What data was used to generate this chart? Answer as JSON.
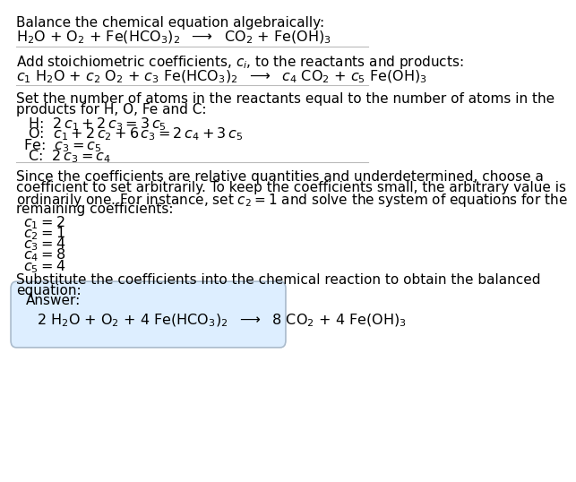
{
  "title_line": "Balance the chemical equation algebraically:",
  "reaction_line": "H$_2$O + O$_2$ + Fe(HCO$_3$)$_2$  $\\longrightarrow$  CO$_2$ + Fe(OH)$_3$",
  "add_coeff_text": "Add stoichiometric coefficients, $c_i$, to the reactants and products:",
  "coeff_reaction": "$c_1$ H$_2$O + $c_2$ O$_2$ + $c_3$ Fe(HCO$_3$)$_2$  $\\longrightarrow$  $c_4$ CO$_2$ + $c_5$ Fe(OH)$_3$",
  "atoms_text1": "Set the number of atoms in the reactants equal to the number of atoms in the",
  "atoms_text2": "products for H, O, Fe and C:",
  "eq_H": " H:  $2\\,c_1 + 2\\,c_3 = 3\\,c_5$",
  "eq_O": " O:  $c_1 + 2\\,c_2 + 6\\,c_3 = 2\\,c_4 + 3\\,c_5$",
  "eq_Fe": "Fe:  $c_3 = c_5$",
  "eq_C": " C:  $2\\,c_3 = c_4$",
  "since_text1": "Since the coefficients are relative quantities and underdetermined, choose a",
  "since_text2": "coefficient to set arbitrarily. To keep the coefficients small, the arbitrary value is",
  "since_text3": "ordinarily one. For instance, set $c_2 = 1$ and solve the system of equations for the",
  "since_text4": "remaining coefficients:",
  "sol_c1": "$c_1 = 2$",
  "sol_c2": "$c_2 = 1$",
  "sol_c3": "$c_3 = 4$",
  "sol_c4": "$c_4 = 8$",
  "sol_c5": "$c_5 = 4$",
  "subst_text1": "Substitute the coefficients into the chemical reaction to obtain the balanced",
  "subst_text2": "equation:",
  "answer_label": "Answer:",
  "answer_eq": "2 H$_2$O + O$_2$ + 4 Fe(HCO$_3$)$_2$  $\\longrightarrow$  8 CO$_2$ + 4 Fe(OH)$_3$",
  "bg_color": "#ffffff",
  "text_color": "#000000",
  "box_bg": "#ddeeff",
  "box_edge": "#aabbcc",
  "font_size": 11
}
